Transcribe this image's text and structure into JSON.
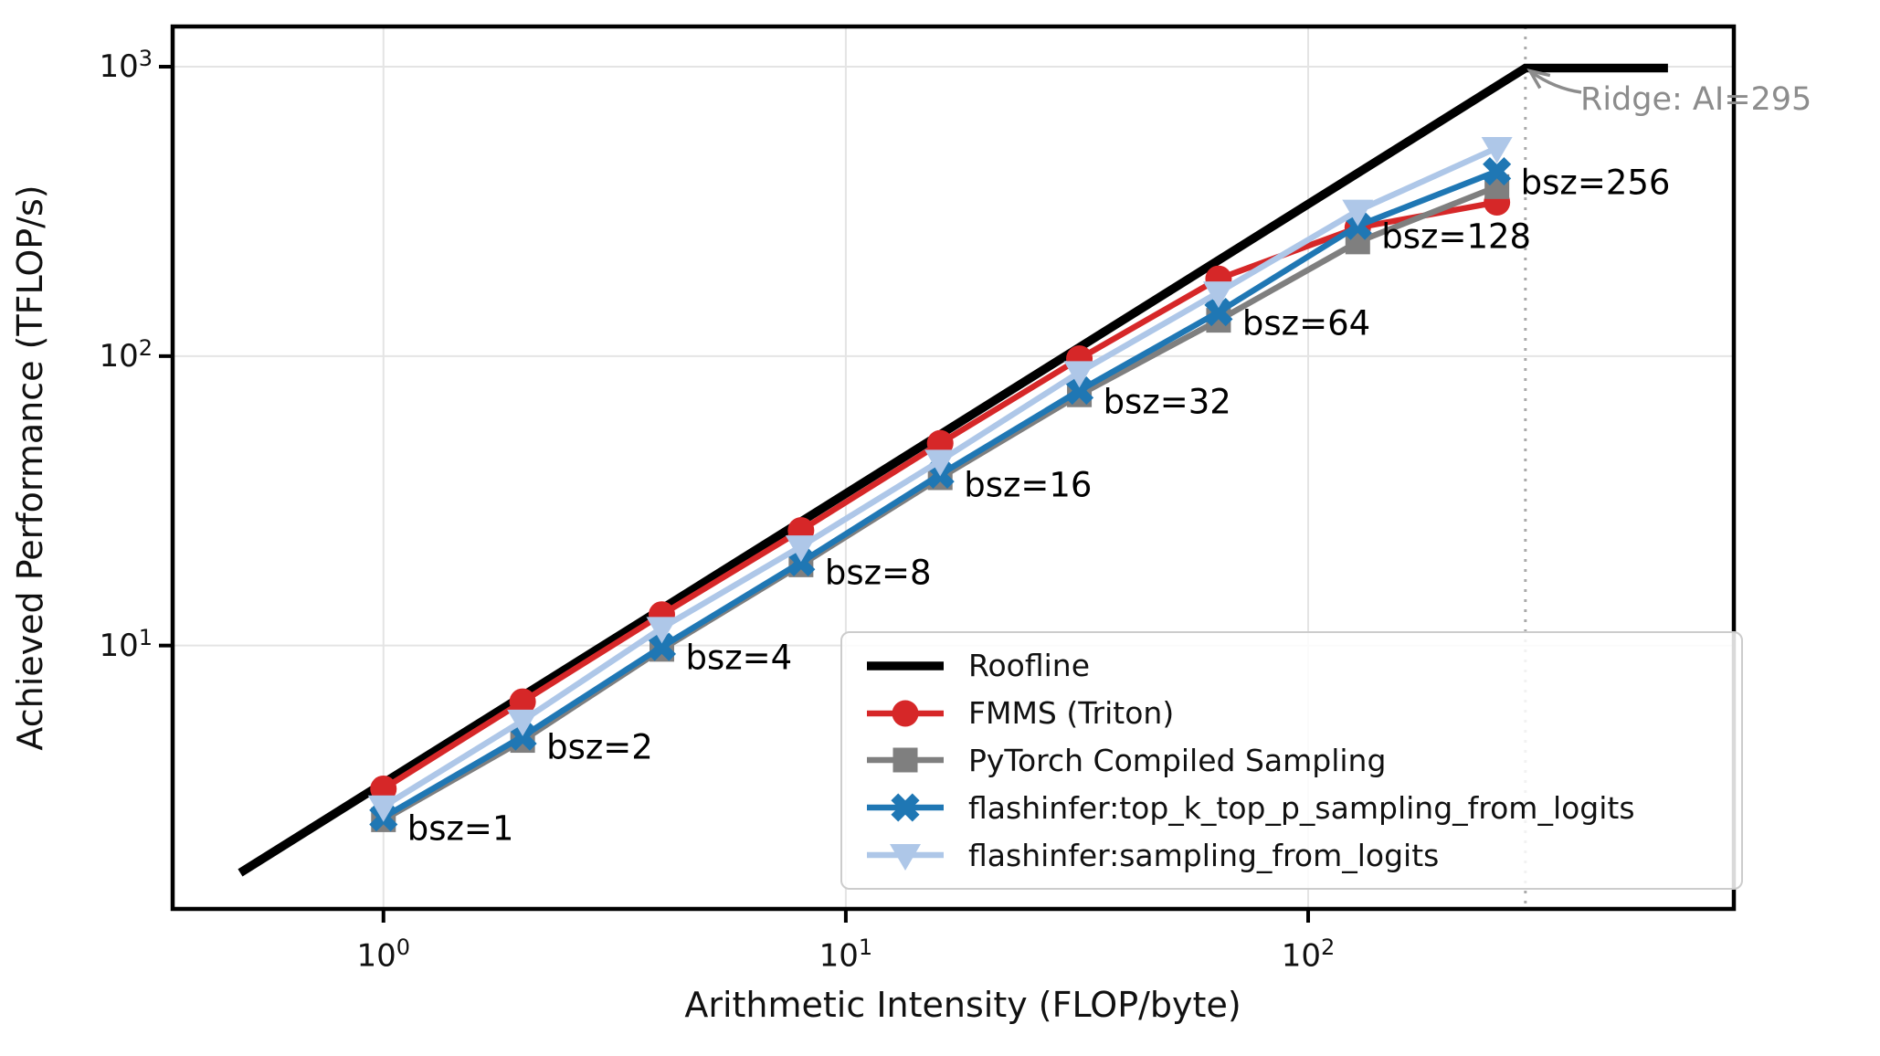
{
  "figure": {
    "background": "#ffffff"
  },
  "chart_data": {
    "type": "line",
    "title": "",
    "xlabel": "Arithmetic Intensity (FLOP/byte)",
    "ylabel": "Achieved Performance (TFLOP/s)",
    "xscale": "log",
    "yscale": "log",
    "xlim": [
      0.35,
      833
    ],
    "ylim": [
      1.23,
      1377
    ],
    "grid": true,
    "legend_position": "lower right",
    "x_ticks": [
      {
        "value": 1,
        "base": "10",
        "exp": "0"
      },
      {
        "value": 10,
        "base": "10",
        "exp": "1"
      },
      {
        "value": 100,
        "base": "10",
        "exp": "2"
      }
    ],
    "y_ticks": [
      {
        "value": 10,
        "base": "10",
        "exp": "1"
      },
      {
        "value": 100,
        "base": "10",
        "exp": "2"
      },
      {
        "value": 1000,
        "base": "10",
        "exp": "3"
      }
    ],
    "roofline": {
      "name": "Roofline",
      "color": "#000000",
      "x": [
        0.49,
        295,
        600
      ],
      "y": [
        1.64,
        989,
        989
      ]
    },
    "series": [
      {
        "name": "FMMS (Triton)",
        "color": "#d62728",
        "marker": "circle",
        "x": [
          1,
          2,
          4,
          8,
          16,
          32,
          64,
          128,
          256
        ],
        "y": [
          3.2,
          6.4,
          12.8,
          25,
          50,
          98,
          185,
          278,
          340
        ]
      },
      {
        "name": "PyTorch Compiled Sampling",
        "color": "#7f7f7f",
        "marker": "square",
        "x": [
          1,
          2,
          4,
          8,
          16,
          32,
          64,
          128,
          256
        ],
        "y": [
          2.5,
          4.7,
          9.7,
          19,
          38,
          73.5,
          133,
          248,
          385
        ]
      },
      {
        "name": "flashinfer:top_k_top_p_sampling_from_logits",
        "color": "#1f77b4",
        "marker": "x",
        "x": [
          1,
          2,
          4,
          8,
          16,
          32,
          64,
          128,
          256
        ],
        "y": [
          2.55,
          4.85,
          9.9,
          19.4,
          39,
          76,
          142,
          282,
          435
        ]
      },
      {
        "name": "flashinfer:sampling_from_logits",
        "color": "#aec7e8",
        "marker": "triangle-down",
        "x": [
          1,
          2,
          4,
          8,
          16,
          32,
          64,
          128,
          256
        ],
        "y": [
          2.78,
          5.5,
          11.5,
          22,
          43.5,
          88,
          166,
          318,
          524
        ]
      }
    ],
    "point_labels": [
      {
        "text": "bsz=1",
        "x": 1
      },
      {
        "text": "bsz=2",
        "x": 2
      },
      {
        "text": "bsz=4",
        "x": 4
      },
      {
        "text": "bsz=8",
        "x": 8
      },
      {
        "text": "bsz=16",
        "x": 16
      },
      {
        "text": "bsz=32",
        "x": 32
      },
      {
        "text": "bsz=64",
        "x": 64
      },
      {
        "text": "bsz=128",
        "x": 128
      },
      {
        "text": "bsz=256",
        "x": 256
      }
    ],
    "ridge": {
      "label": "Ridge: AI=295",
      "ai": 295,
      "peak": 989,
      "line_color": "#aaaaaa",
      "arrow_color": "#8c8c8c",
      "text_color": "#8c8c8c"
    },
    "colors": {
      "grid": "#e4e4e4",
      "spine": "#000000"
    }
  }
}
